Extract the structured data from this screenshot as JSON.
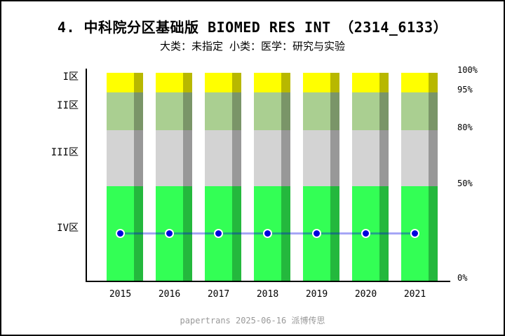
{
  "header": {
    "title": "4. 中科院分区基础版 BIOMED RES INT （2314_6133）",
    "subtitle": "大类：未指定 小类：医学：研究与实验"
  },
  "footer": {
    "text": "papertrans 2025-06-16 派博传思"
  },
  "chart_data": {
    "type": "bar",
    "subtype": "stacked-zone-bars-with-percentile-line",
    "title": "4. 中科院分区基础版 BIOMED RES INT （2314_6133）",
    "subtitle": "大类：未指定 小类：医学：研究与实验",
    "categories": [
      "2015",
      "2016",
      "2017",
      "2018",
      "2019",
      "2020",
      "2021"
    ],
    "zones": [
      {
        "label": "I区",
        "from_pct": 95,
        "to_pct": 100,
        "color": "#ffff00"
      },
      {
        "label": "II区",
        "from_pct": 80,
        "to_pct": 95,
        "color": "#aacf91"
      },
      {
        "label": "III区",
        "from_pct": 50,
        "to_pct": 80,
        "color": "#d3d3d3"
      },
      {
        "label": "IV区",
        "from_pct": 0,
        "to_pct": 50,
        "color": "#33ff55"
      }
    ],
    "right_ticks": [
      {
        "pct": 100,
        "label": "100%"
      },
      {
        "pct": 95,
        "label": "95%"
      },
      {
        "pct": 80,
        "label": "80%"
      },
      {
        "pct": 50,
        "label": "50%"
      },
      {
        "pct": 0,
        "label": "0%"
      }
    ],
    "line_series": {
      "zone_per_year": [
        "IV区",
        "IV区",
        "IV区",
        "IV区",
        "IV区",
        "IV区",
        "IV区"
      ],
      "values_pct": [
        25,
        25,
        25,
        25,
        25,
        25,
        25
      ]
    },
    "ylim": [
      0,
      100
    ],
    "colors": {
      "dot": "#0000dd",
      "line": "rgba(0,0,230,0.35)",
      "bar_shade_overlay": "rgba(0,0,0,0.28)",
      "axis": "#000000",
      "footer_text": "#999999"
    },
    "legend": "none",
    "grid": "off"
  }
}
